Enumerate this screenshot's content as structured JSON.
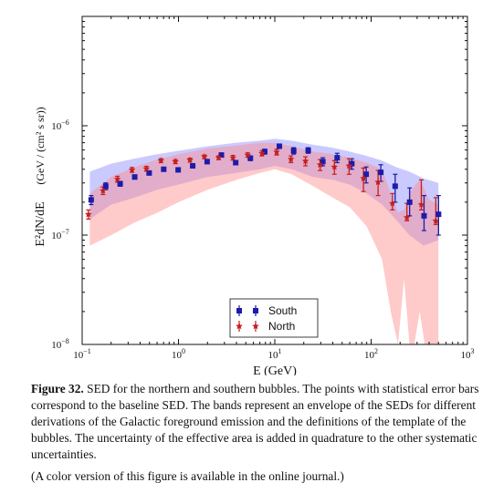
{
  "chart_data": {
    "type": "scatter",
    "x_scale": "log",
    "y_scale": "log",
    "xlim": [
      0.1,
      1000
    ],
    "ylim": [
      1e-08,
      1e-05
    ],
    "x_ticks": [
      0.1,
      1,
      10,
      100,
      1000
    ],
    "x_tick_labels": [
      [
        "10",
        "−1"
      ],
      [
        "10",
        "0"
      ],
      [
        "10",
        "1"
      ],
      [
        "10",
        "2"
      ],
      [
        "10",
        "3"
      ]
    ],
    "y_ticks": [
      1e-08,
      1e-07,
      1e-06
    ],
    "y_tick_labels": [
      [
        "10",
        "−8"
      ],
      [
        "10",
        "−7"
      ],
      [
        "10",
        "−6"
      ]
    ],
    "xlabel": "E (GeV)",
    "ylabel_main": "E²dN/dE",
    "ylabel_unit": "(GeV / (cm² s sr))",
    "legend": {
      "placement": "lower-center",
      "entries": [
        "South",
        "North"
      ]
    },
    "series": [
      {
        "name": "South",
        "marker": "square",
        "color": "#1c1ca8",
        "x": [
          0.12,
          0.17,
          0.24,
          0.34,
          0.48,
          0.68,
          0.96,
          1.36,
          1.92,
          2.7,
          3.8,
          5.4,
          7.6,
          10.8,
          15.2,
          21.5,
          30.5,
          43,
          61,
          86,
          122,
          172,
          243,
          343,
          485
        ],
        "y": [
          2.1e-07,
          2.8e-07,
          2.95e-07,
          3.4e-07,
          3.7e-07,
          4e-07,
          3.95e-07,
          4.3e-07,
          4.7e-07,
          5.4e-07,
          4.6e-07,
          5.05e-07,
          5.8e-07,
          6.5e-07,
          5.9e-07,
          5.95e-07,
          4.7e-07,
          5.1e-07,
          4.5e-07,
          3.6e-07,
          3.75e-07,
          2.8e-07,
          2e-07,
          1.5e-07,
          1.55e-07
        ],
        "err_lo": [
          1.9e-07,
          2.6e-07,
          2.8e-07,
          3.25e-07,
          3.55e-07,
          3.85e-07,
          3.8e-07,
          4.15e-07,
          4.5e-07,
          5.2e-07,
          4.4e-07,
          4.8e-07,
          5.5e-07,
          6.2e-07,
          5.5e-07,
          5.6e-07,
          4.3e-07,
          4.6e-07,
          4e-07,
          3e-07,
          3.1e-07,
          2e-07,
          1.5e-07,
          1.1e-07,
          1e-07
        ],
        "err_hi": [
          2.3e-07,
          3e-07,
          3.1e-07,
          3.55e-07,
          3.85e-07,
          4.15e-07,
          4.1e-07,
          4.45e-07,
          4.9e-07,
          5.6e-07,
          4.8e-07,
          5.3e-07,
          6.1e-07,
          6.8e-07,
          6.3e-07,
          6.3e-07,
          5.1e-07,
          5.6e-07,
          5e-07,
          4.2e-07,
          4.4e-07,
          3.6e-07,
          2.7e-07,
          2.3e-07,
          2.3e-07
        ],
        "band_x": [
          0.12,
          0.2,
          0.35,
          0.6,
          1,
          2,
          4,
          7,
          10,
          15,
          25,
          40,
          60,
          90,
          130,
          180,
          250,
          350,
          500
        ],
        "band_lo": [
          1.4e-07,
          1.9e-07,
          2.2e-07,
          2.6e-07,
          2.9e-07,
          3.4e-07,
          3.7e-07,
          4e-07,
          4.3e-07,
          4e-07,
          3.4e-07,
          3.2e-07,
          2.9e-07,
          2.4e-07,
          1.9e-07,
          1.4e-07,
          1e-07,
          8e-08,
          9e-08
        ],
        "band_hi": [
          3.8e-07,
          4.5e-07,
          5e-07,
          5.5e-07,
          5.9e-07,
          6.5e-07,
          7e-07,
          7.3e-07,
          7.6e-07,
          7.3e-07,
          6.7e-07,
          6.3e-07,
          5.8e-07,
          5.3e-07,
          4.8e-07,
          4.2e-07,
          3.8e-07,
          3.3e-07,
          3e-07
        ]
      },
      {
        "name": "North",
        "marker": "star",
        "color": "#c41f1f",
        "x": [
          0.12,
          0.17,
          0.24,
          0.34,
          0.48,
          0.68,
          0.96,
          1.36,
          1.92,
          2.7,
          3.8,
          5.4,
          7.6,
          10.8,
          15.2,
          21.5,
          30.5,
          43,
          61,
          86,
          122,
          172,
          243,
          343,
          485
        ],
        "y": [
          1.55e-07,
          2.55e-07,
          3.25e-07,
          3.95e-07,
          4.05e-07,
          4.8e-07,
          4.7e-07,
          4.85e-07,
          5.2e-07,
          5.1e-07,
          5.1e-07,
          5.4e-07,
          5.6e-07,
          5.75e-07,
          4.95e-07,
          4.75e-07,
          4.4e-07,
          4.2e-07,
          4.3e-07,
          3.3e-07,
          3.05e-07,
          1.95e-07,
          1.45e-07,
          1.9e-07,
          1.35e-07
        ],
        "err_lo": [
          1.4e-07,
          2.35e-07,
          3.05e-07,
          3.75e-07,
          3.85e-07,
          4.6e-07,
          4.5e-07,
          4.65e-07,
          5e-07,
          4.9e-07,
          4.85e-07,
          5.15e-07,
          5.3e-07,
          5.4e-07,
          4.6e-07,
          4.3e-07,
          3.9e-07,
          3.6e-07,
          3.6e-07,
          2.5e-07,
          2.3e-07,
          1.7e-07,
          1.35e-07,
          1.7e-07,
          1.25e-07
        ],
        "err_hi": [
          1.7e-07,
          2.75e-07,
          3.45e-07,
          4.15e-07,
          4.25e-07,
          5e-07,
          4.9e-07,
          5.05e-07,
          5.4e-07,
          5.3e-07,
          5.35e-07,
          5.65e-07,
          5.9e-07,
          6.1e-07,
          5.3e-07,
          5.2e-07,
          4.9e-07,
          4.8e-07,
          5e-07,
          4.1e-07,
          3.9e-07,
          2.4e-07,
          1.95e-07,
          3.2e-07,
          2.2e-07
        ],
        "band_x": [
          0.12,
          0.2,
          0.35,
          0.6,
          1,
          2,
          4,
          7,
          10,
          15,
          25,
          40,
          60,
          90,
          130,
          160,
          190,
          220,
          250,
          280,
          320,
          360,
          400,
          450,
          500
        ],
        "band_lo": [
          8e-08,
          1e-07,
          1.3e-07,
          1.6e-07,
          2e-07,
          2.6e-07,
          3.2e-07,
          3.7e-07,
          4e-07,
          3.6e-07,
          2.8e-07,
          2.2e-07,
          1.8e-07,
          1.2e-07,
          6e-08,
          2e-08,
          1e-08,
          4e-08,
          1e-08,
          1e-08,
          2e-08,
          1e-08,
          1e-08,
          1e-08,
          1e-08
        ],
        "band_hi": [
          2.4e-07,
          3.4e-07,
          4.2e-07,
          4.9e-07,
          5.5e-07,
          6.2e-07,
          6.6e-07,
          7e-07,
          7e-07,
          6.5e-07,
          5.8e-07,
          5.5e-07,
          5.1e-07,
          4.6e-07,
          4e-07,
          2.4e-07,
          1.6e-07,
          1.7e-07,
          2.4e-07,
          2.8e-07,
          3.2e-07,
          2.6e-07,
          2.1e-07,
          2e-07,
          1.9e-07
        ]
      }
    ]
  },
  "caption": {
    "label": "Figure 32.",
    "text": "SED for the northern and southern bubbles. The points with statistical error bars correspond to the baseline SED. The bands represent an envelope of the SEDs for different derivations of the Galactic foreground emission and the definitions of the template of the bubbles. The uncertainty of the effective area is added in quadrature to the other systematic uncertainties.",
    "note": "(A color version of this figure is available in the online journal.)"
  },
  "colors": {
    "south_band": "#8a8aff",
    "north_band": "#ff8a8a",
    "south_marker": "#1c1ca8",
    "north_marker": "#c41f1f"
  }
}
